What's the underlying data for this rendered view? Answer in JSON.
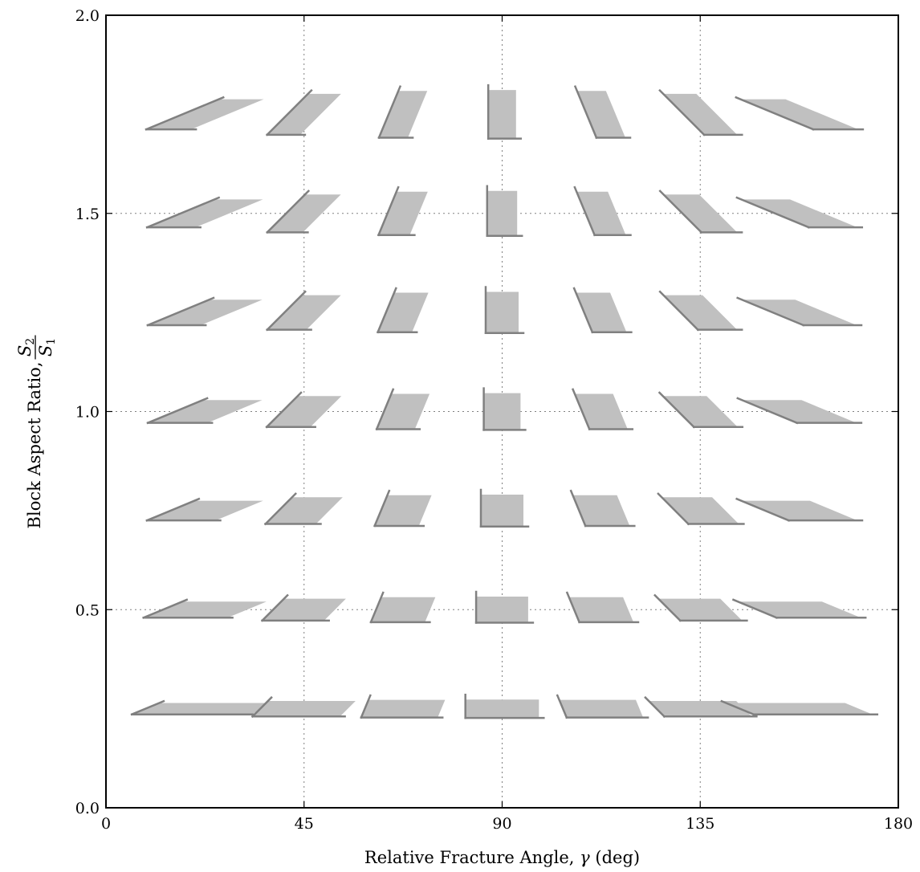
{
  "chart_data": {
    "type": "scatter",
    "xlabel_text": "Relative Fracture Angle, ",
    "xlabel_symbol": "γ",
    "xlabel_unit": " (deg)",
    "ylabel_text": "Block Aspect Ratio, ",
    "ylabel_num": "S",
    "ylabel_num_sub": "2",
    "ylabel_den": "S",
    "ylabel_den_sub": "1",
    "xlim": [
      0,
      180
    ],
    "ylim": [
      0.0,
      2.0
    ],
    "xticks": [
      0,
      45,
      90,
      135,
      180
    ],
    "xtick_labels": [
      "0",
      "45",
      "90",
      "135",
      "180"
    ],
    "yticks": [
      0.0,
      0.5,
      1.0,
      1.5,
      2.0
    ],
    "ytick_labels": [
      "0.0",
      "0.5",
      "1.0",
      "1.5",
      "2.0"
    ],
    "grid": true,
    "gamma_values": [
      22.5,
      45,
      67.5,
      90,
      112.5,
      135,
      157.5
    ],
    "aspect_ratios": [
      0.25,
      0.5,
      0.75,
      1.0,
      1.25,
      1.5,
      1.75
    ],
    "marker": "parallelogram block glyph with highlighted base and side edges",
    "colors": {
      "fill": "#c0c0c0",
      "edge": "#808080",
      "grid": "#808080",
      "axis": "#000000"
    }
  }
}
